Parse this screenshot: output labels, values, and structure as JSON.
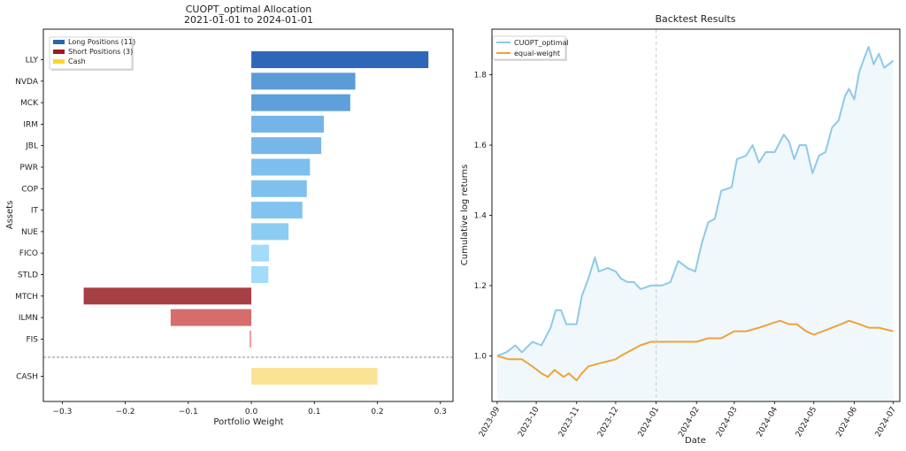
{
  "chart_data": [
    {
      "type": "bar",
      "orientation": "horizontal",
      "title": "CUOPT_optimal Allocation",
      "subtitle": "2021-01-01 to 2024-01-01",
      "xlabel": "Portfolio Weight",
      "ylabel": "Assets",
      "xlim": [
        -0.33,
        0.32
      ],
      "xticks": [
        "−0.3",
        "−0.2",
        "−0.1",
        "0.0",
        "0.1",
        "0.2",
        "0.3"
      ],
      "xtick_values": [
        -0.3,
        -0.2,
        -0.1,
        0.0,
        0.1,
        0.2,
        0.3
      ],
      "grid": false,
      "legend_position": "top-left",
      "legend": [
        "Long Positions (11)",
        "Short Positions (3)",
        "Cash"
      ],
      "legend_colors": [
        "#2b63ae",
        "#a11a1f",
        "#ffd42a"
      ],
      "categories": [
        "LLY",
        "NVDA",
        "MCK",
        "IRM",
        "JBL",
        "PWR",
        "COP",
        "IT",
        "NUE",
        "FICO",
        "STLD",
        "MTCH",
        "ILMN",
        "FIS",
        "CASH"
      ],
      "values": [
        0.281,
        0.165,
        0.157,
        0.115,
        0.111,
        0.093,
        0.088,
        0.081,
        0.059,
        0.028,
        0.027,
        -0.266,
        -0.128,
        -0.003,
        0.2
      ],
      "colors": [
        "#2e67b8",
        "#5b9bd8",
        "#5f9fdb",
        "#74b4e8",
        "#76b6e9",
        "#7dbfee",
        "#7fc1ee",
        "#82c4ef",
        "#8bccf2",
        "#a3dcfb",
        "#a3dcfb",
        "#a64045",
        "#d66d6b",
        "#f0a0a0",
        "#fbe294"
      ],
      "separator": "dashed line between FIS and CASH"
    },
    {
      "type": "line",
      "title": "Backtest Results",
      "xlabel": "Date",
      "ylabel": "Cumulative log returns",
      "ylim": [
        0.87,
        1.93
      ],
      "yticks": [
        "1.0",
        "1.2",
        "1.4",
        "1.6",
        "1.8"
      ],
      "ytick_values": [
        1.0,
        1.2,
        1.4,
        1.6,
        1.8
      ],
      "xticks": [
        "2023-09",
        "2023-10",
        "2023-11",
        "2023-12",
        "2024-01",
        "2024-02",
        "2024-03",
        "2024-04",
        "2024-05",
        "2024-06",
        "2024-07"
      ],
      "x_range": [
        "2023-09-01",
        "2024-07-01"
      ],
      "vline": "2024-01-01",
      "grid": false,
      "legend_position": "top-left",
      "series": [
        {
          "name": "CUOPT_optimal",
          "color": "#8ecae6",
          "fill": true,
          "points": [
            [
              "2023-09-01",
              1.0
            ],
            [
              "2023-09-08",
              1.01
            ],
            [
              "2023-09-15",
              1.03
            ],
            [
              "2023-09-20",
              1.01
            ],
            [
              "2023-09-28",
              1.04
            ],
            [
              "2023-10-05",
              1.03
            ],
            [
              "2023-10-12",
              1.08
            ],
            [
              "2023-10-16",
              1.13
            ],
            [
              "2023-10-20",
              1.13
            ],
            [
              "2023-10-24",
              1.09
            ],
            [
              "2023-11-01",
              1.09
            ],
            [
              "2023-11-05",
              1.17
            ],
            [
              "2023-11-10",
              1.22
            ],
            [
              "2023-11-15",
              1.28
            ],
            [
              "2023-11-18",
              1.24
            ],
            [
              "2023-11-25",
              1.25
            ],
            [
              "2023-12-01",
              1.24
            ],
            [
              "2023-12-05",
              1.22
            ],
            [
              "2023-12-10",
              1.21
            ],
            [
              "2023-12-15",
              1.21
            ],
            [
              "2023-12-20",
              1.19
            ],
            [
              "2023-12-28",
              1.2
            ],
            [
              "2024-01-05",
              1.2
            ],
            [
              "2024-01-12",
              1.21
            ],
            [
              "2024-01-18",
              1.27
            ],
            [
              "2024-01-25",
              1.25
            ],
            [
              "2024-01-31",
              1.24
            ],
            [
              "2024-02-05",
              1.32
            ],
            [
              "2024-02-10",
              1.38
            ],
            [
              "2024-02-15",
              1.39
            ],
            [
              "2024-02-20",
              1.47
            ],
            [
              "2024-02-28",
              1.48
            ],
            [
              "2024-03-03",
              1.56
            ],
            [
              "2024-03-10",
              1.57
            ],
            [
              "2024-03-15",
              1.6
            ],
            [
              "2024-03-20",
              1.55
            ],
            [
              "2024-03-25",
              1.58
            ],
            [
              "2024-04-01",
              1.58
            ],
            [
              "2024-04-08",
              1.63
            ],
            [
              "2024-04-12",
              1.61
            ],
            [
              "2024-04-16",
              1.56
            ],
            [
              "2024-04-20",
              1.6
            ],
            [
              "2024-04-25",
              1.6
            ],
            [
              "2024-04-30",
              1.52
            ],
            [
              "2024-05-05",
              1.57
            ],
            [
              "2024-05-10",
              1.58
            ],
            [
              "2024-05-15",
              1.65
            ],
            [
              "2024-05-20",
              1.67
            ],
            [
              "2024-05-25",
              1.74
            ],
            [
              "2024-05-28",
              1.76
            ],
            [
              "2024-06-01",
              1.73
            ],
            [
              "2024-06-05",
              1.81
            ],
            [
              "2024-06-12",
              1.88
            ],
            [
              "2024-06-16",
              1.83
            ],
            [
              "2024-06-20",
              1.86
            ],
            [
              "2024-06-24",
              1.82
            ],
            [
              "2024-07-01",
              1.84
            ]
          ]
        },
        {
          "name": "equal-weight",
          "color": "#f0a23b",
          "fill": false,
          "points": [
            [
              "2023-09-01",
              1.0
            ],
            [
              "2023-09-10",
              0.99
            ],
            [
              "2023-09-20",
              0.99
            ],
            [
              "2023-09-28",
              0.97
            ],
            [
              "2023-10-05",
              0.95
            ],
            [
              "2023-10-10",
              0.94
            ],
            [
              "2023-10-15",
              0.96
            ],
            [
              "2023-10-22",
              0.94
            ],
            [
              "2023-10-26",
              0.95
            ],
            [
              "2023-11-01",
              0.93
            ],
            [
              "2023-11-05",
              0.95
            ],
            [
              "2023-11-10",
              0.97
            ],
            [
              "2023-11-20",
              0.98
            ],
            [
              "2023-12-01",
              0.99
            ],
            [
              "2023-12-05",
              1.0
            ],
            [
              "2023-12-10",
              1.01
            ],
            [
              "2023-12-20",
              1.03
            ],
            [
              "2023-12-28",
              1.04
            ],
            [
              "2024-01-08",
              1.04
            ],
            [
              "2024-01-15",
              1.04
            ],
            [
              "2024-01-22",
              1.04
            ],
            [
              "2024-02-01",
              1.04
            ],
            [
              "2024-02-10",
              1.05
            ],
            [
              "2024-02-20",
              1.05
            ],
            [
              "2024-03-01",
              1.07
            ],
            [
              "2024-03-10",
              1.07
            ],
            [
              "2024-03-20",
              1.08
            ],
            [
              "2024-03-28",
              1.09
            ],
            [
              "2024-04-05",
              1.1
            ],
            [
              "2024-04-12",
              1.09
            ],
            [
              "2024-04-18",
              1.09
            ],
            [
              "2024-04-25",
              1.07
            ],
            [
              "2024-05-01",
              1.06
            ],
            [
              "2024-05-08",
              1.07
            ],
            [
              "2024-05-15",
              1.08
            ],
            [
              "2024-05-22",
              1.09
            ],
            [
              "2024-05-28",
              1.1
            ],
            [
              "2024-06-05",
              1.09
            ],
            [
              "2024-06-12",
              1.08
            ],
            [
              "2024-06-20",
              1.08
            ],
            [
              "2024-07-01",
              1.07
            ]
          ]
        }
      ]
    }
  ]
}
